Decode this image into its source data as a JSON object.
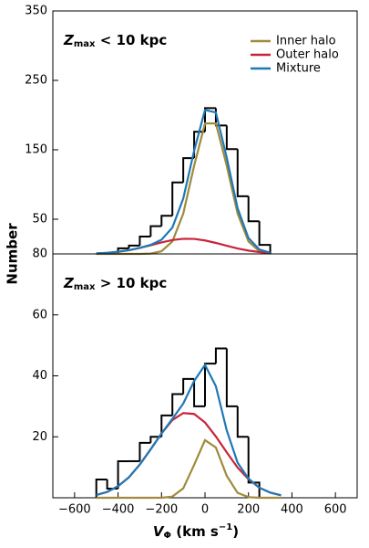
{
  "chart_data": [
    {
      "type": "histogram",
      "annotation": {
        "main": "Z",
        "sub": "max",
        "rest": " < 10 kpc"
      },
      "ylabel": "Number",
      "bins": [
        -400,
        -350,
        -300,
        -250,
        -200,
        -150,
        -100,
        -50,
        0,
        50,
        100,
        150,
        200,
        250,
        300
      ],
      "counts": [
        8,
        12,
        25,
        40,
        55,
        103,
        138,
        176,
        210,
        185,
        151,
        83,
        47,
        13
      ],
      "hist_color": "#000000",
      "series": [
        {
          "name": "Inner halo",
          "color": "#a08a3c",
          "x": [
            -500,
            -450,
            -400,
            -350,
            -300,
            -250,
            -200,
            -150,
            -100,
            -50,
            0,
            50,
            100,
            150,
            200,
            250,
            300
          ],
          "values": [
            0,
            0,
            0,
            0,
            0,
            0.5,
            3.8,
            18,
            58,
            127,
            188,
            188,
            127,
            58,
            18,
            3.8,
            0.5
          ]
        },
        {
          "name": "Outer halo",
          "color": "#c8243c",
          "x": [
            -500,
            -450,
            -400,
            -350,
            -300,
            -250,
            -200,
            -150,
            -100,
            -50,
            0,
            50,
            100,
            150,
            200,
            250,
            300
          ],
          "values": [
            0.7,
            1.5,
            3,
            5.3,
            8.6,
            12.5,
            16.6,
            20,
            21.8,
            21.6,
            19.4,
            15.8,
            11.7,
            7.8,
            4.8,
            2.6,
            1.3
          ]
        },
        {
          "name": "Mixture",
          "color": "#1f78b4",
          "x": [
            -500,
            -450,
            -400,
            -350,
            -300,
            -250,
            -200,
            -150,
            -100,
            -50,
            0,
            50,
            100,
            150,
            200,
            250,
            300
          ],
          "values": [
            0.7,
            1.5,
            3,
            5.3,
            8.6,
            13,
            20.4,
            38,
            79.8,
            148.6,
            207.4,
            203.8,
            138.7,
            65.8,
            22.8,
            6.4,
            1.8
          ]
        }
      ],
      "xlim": [
        -700,
        700
      ],
      "ylim": [
        0,
        350
      ],
      "yticks": [
        50,
        150,
        250,
        350
      ],
      "legend": "upper right"
    },
    {
      "type": "histogram",
      "annotation": {
        "main": "Z",
        "sub": "max",
        "rest": " > 10 kpc"
      },
      "xlabel": {
        "main": "V",
        "sub": "Φ",
        "rest": " (km s",
        "sup": "−1",
        "end": ")"
      },
      "bins": [
        -500,
        -450,
        -400,
        -350,
        -300,
        -250,
        -200,
        -150,
        -100,
        -50,
        0,
        50,
        100,
        150,
        200,
        250
      ],
      "counts": [
        6,
        3,
        12,
        12,
        18,
        20,
        27,
        34,
        39,
        30,
        44,
        49,
        30,
        20,
        5
      ],
      "hist_color": "#000000",
      "series": [
        {
          "color": "#a08a3c",
          "x": [
            -500,
            -450,
            -400,
            -350,
            -300,
            -250,
            -200,
            -150,
            -100,
            -50,
            0,
            50,
            100,
            150,
            200,
            250,
            300,
            350
          ],
          "values": [
            0,
            0,
            0,
            0,
            0,
            0,
            0,
            0.4,
            3.1,
            10.8,
            18.9,
            16.5,
            7.2,
            1.6,
            0.2,
            0,
            0,
            0
          ]
        },
        {
          "color": "#c8243c",
          "x": [
            -500,
            -450,
            -400,
            -350,
            -300,
            -250,
            -200,
            -150,
            -100,
            -50,
            0,
            50,
            100,
            150,
            200,
            250,
            300,
            350
          ],
          "values": [
            0.9,
            1.9,
            3.8,
            6.7,
            10.9,
            15.9,
            21.1,
            25.5,
            27.8,
            27.5,
            24.7,
            20.1,
            14.9,
            9.9,
            6.1,
            3.3,
            1.7,
            0.8
          ]
        },
        {
          "color": "#1f78b4",
          "x": [
            -500,
            -450,
            -400,
            -350,
            -300,
            -250,
            -200,
            -150,
            -100,
            -50,
            0,
            50,
            100,
            150,
            200,
            250,
            300,
            350
          ],
          "values": [
            0.9,
            1.9,
            3.8,
            6.7,
            10.9,
            15.9,
            21.1,
            25.9,
            30.9,
            38.3,
            43.6,
            36.6,
            22.1,
            11.5,
            6.3,
            3.3,
            1.7,
            0.8
          ]
        }
      ],
      "xlim": [
        -700,
        700
      ],
      "ylim": [
        0,
        80
      ],
      "yticks": [
        20,
        40,
        60,
        80
      ],
      "xticks": [
        {
          "value": -600,
          "label": "−600"
        },
        {
          "value": -400,
          "label": "−400"
        },
        {
          "value": -200,
          "label": "−200"
        },
        0,
        200,
        400,
        600
      ]
    }
  ]
}
